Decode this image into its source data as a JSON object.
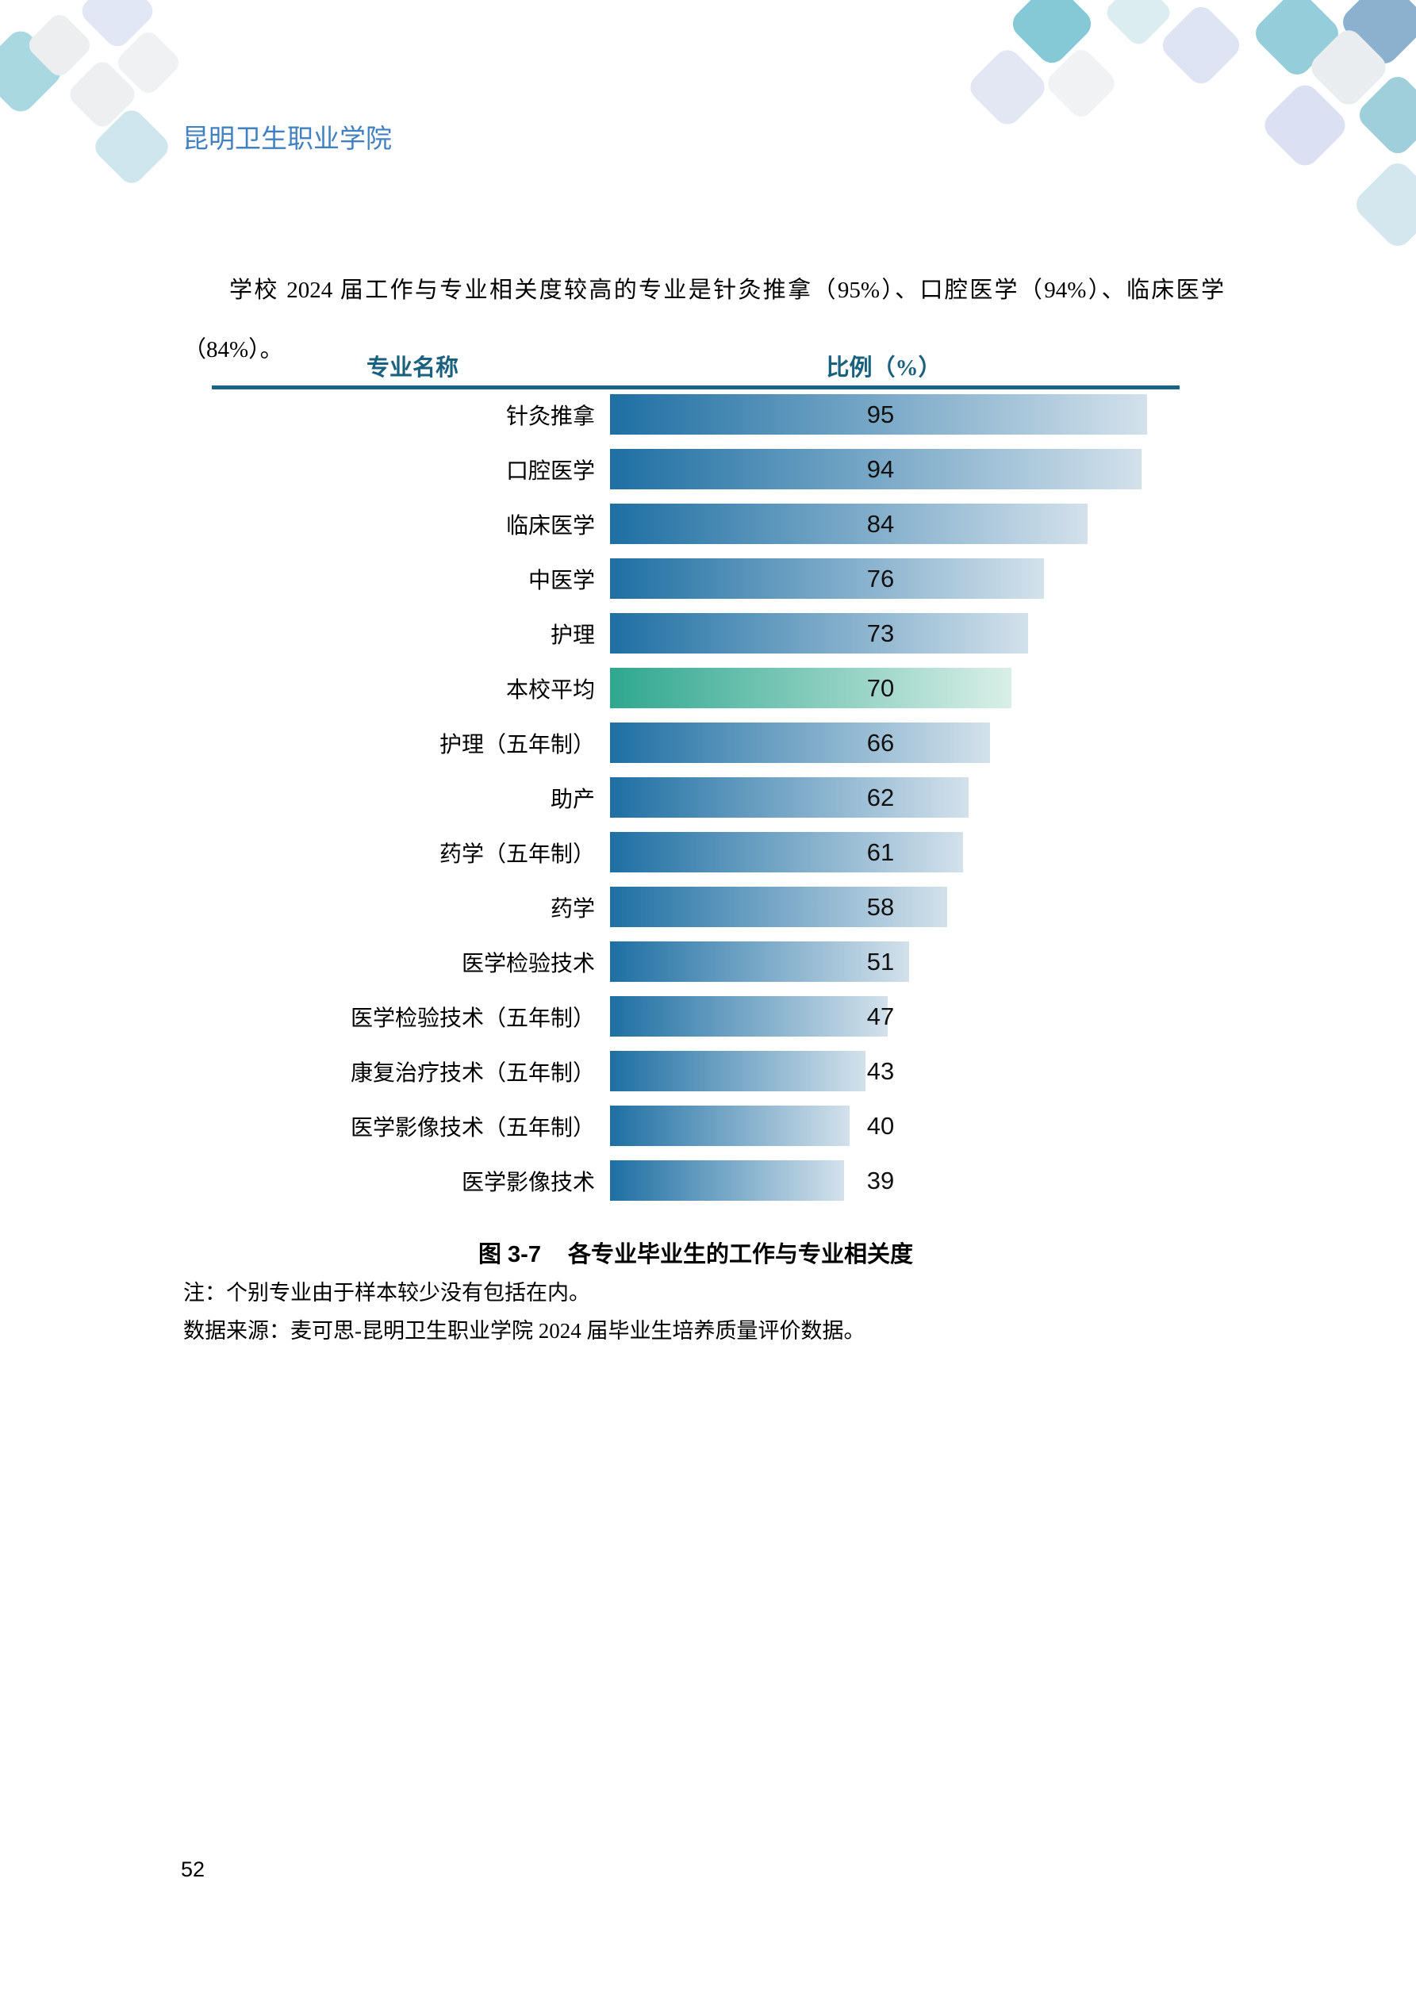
{
  "page": {
    "header_title": "昆明卫生职业学院",
    "page_number": "52"
  },
  "paragraph": {
    "text": "学校 2024 届工作与专业相关度较高的专业是针灸推拿（95%）、口腔医学（94%）、临床医学（84%）。"
  },
  "chart": {
    "col_header_name": "专业名称",
    "col_header_value": "比例（%）",
    "caption_prefix": "图 3-7",
    "caption_title": "各专业毕业生的工作与专业相关度",
    "note": "注：个别专业由于样本较少没有包括在内。",
    "source": "数据来源：麦可思-昆明卫生职业学院 2024 届毕业生培养质量评价数据。"
  },
  "chart_data": {
    "type": "bar",
    "orientation": "horizontal",
    "title": "各专业毕业生的工作与专业相关度",
    "xlabel": "比例（%）",
    "ylabel": "专业名称",
    "xlim": [
      0,
      100
    ],
    "categories": [
      "针灸推拿",
      "口腔医学",
      "临床医学",
      "中医学",
      "护理",
      "本校平均",
      "护理（五年制）",
      "助产",
      "药学（五年制）",
      "药学",
      "医学检验技术",
      "医学检验技术（五年制）",
      "康复治疗技术（五年制）",
      "医学影像技术（五年制）",
      "医学影像技术"
    ],
    "values": [
      95,
      94,
      84,
      76,
      73,
      70,
      66,
      62,
      61,
      58,
      51,
      47,
      43,
      40,
      39
    ],
    "highlight_category": "本校平均",
    "highlight_index": 5,
    "colors": {
      "bar_gradient_start": "#1E6FA3",
      "bar_gradient_end": "#D3E1EB",
      "highlight_gradient_start": "#2FA78F",
      "highlight_gradient_end": "#D9EFE7",
      "rule": "#176486",
      "column_header_text": "#1A617F",
      "page_header_text": "#4181C1"
    }
  }
}
